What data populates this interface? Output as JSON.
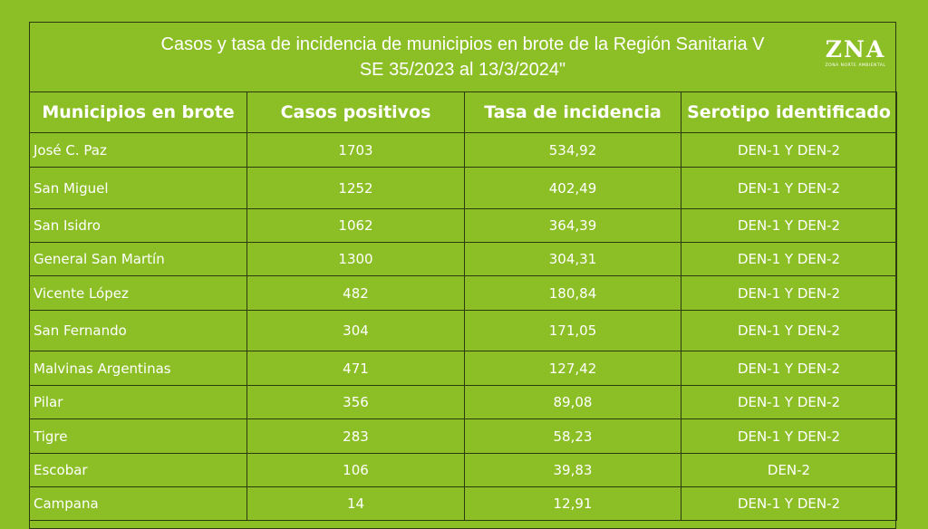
{
  "title": {
    "line1": "Casos y tasa de incidencia de municipios en brote de la Región Sanitaria V",
    "line2": "SE 35/2023 al 13/3/2024\""
  },
  "logo": {
    "mark": "ZNA",
    "subtitle": "ZONA NORTE AMBIENTAL"
  },
  "table": {
    "headers": [
      "Municipios en brote",
      "Casos positivos",
      "Tasa de incidencia",
      "Serotipo identificado"
    ],
    "rows": [
      [
        "José C. Paz",
        "1703",
        "534,92",
        "DEN-1 Y DEN-2"
      ],
      [
        "San Miguel",
        "1252",
        "402,49",
        "DEN-1 Y DEN-2"
      ],
      [
        "San Isidro",
        "1062",
        "364,39",
        "DEN-1 Y DEN-2"
      ],
      [
        "General San Martín",
        "1300",
        "304,31",
        "DEN-1 Y DEN-2"
      ],
      [
        "Vicente López",
        "482",
        "180,84",
        "DEN-1 Y DEN-2"
      ],
      [
        "San Fernando",
        "304",
        "171,05",
        "DEN-1 Y DEN-2"
      ],
      [
        "Malvinas Argentinas",
        "471",
        "127,42",
        "DEN-1 Y DEN-2"
      ],
      [
        "Pilar",
        "356",
        "89,08",
        "DEN-1 Y DEN-2"
      ],
      [
        "Tigre",
        "283",
        "58,23",
        "DEN-1 Y DEN-2"
      ],
      [
        "Escobar",
        "106",
        "39,83",
        "DEN-2"
      ],
      [
        "Campana",
        "14",
        "12,91",
        "DEN-1 Y DEN-2"
      ]
    ]
  },
  "colors": {
    "background": "#8cbf26",
    "border": "#2b3a10",
    "text": "#ffffff"
  }
}
